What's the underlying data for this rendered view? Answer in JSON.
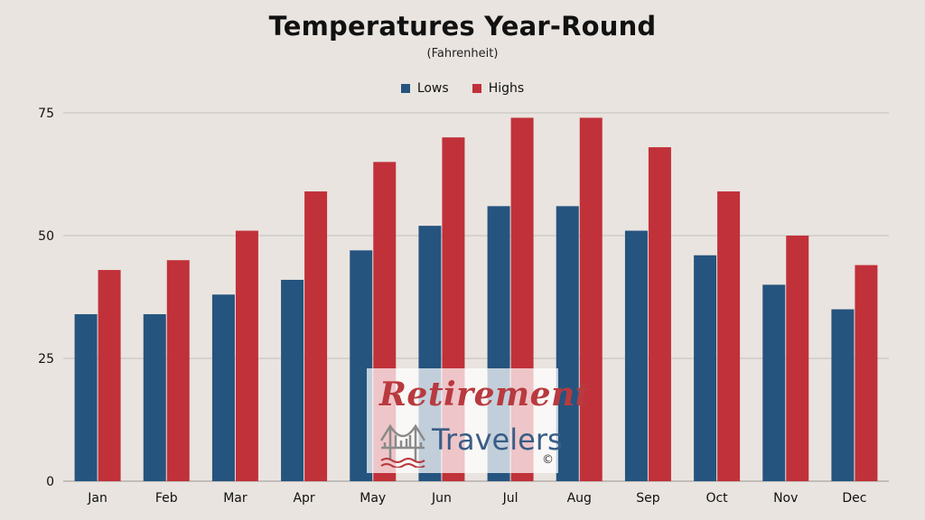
{
  "chart_data": {
    "type": "bar",
    "title": "Temperatures Year-Round",
    "subtitle": "(Fahrenheit)",
    "categories": [
      "Jan",
      "Feb",
      "Mar",
      "Apr",
      "May",
      "Jun",
      "Jul",
      "Aug",
      "Sep",
      "Oct",
      "Nov",
      "Dec"
    ],
    "series": [
      {
        "name": "Lows",
        "color": "#25547f",
        "values": [
          34,
          34,
          38,
          41,
          47,
          52,
          56,
          56,
          51,
          46,
          40,
          35
        ]
      },
      {
        "name": "Highs",
        "color": "#c1313a",
        "values": [
          43,
          45,
          51,
          59,
          65,
          70,
          74,
          74,
          68,
          59,
          50,
          44
        ]
      }
    ],
    "ylim": [
      0,
      75
    ],
    "yticks": [
      0,
      25,
      50,
      75
    ],
    "grid": true,
    "legend_position": "top-center"
  },
  "watermark": {
    "line1": "Retirement",
    "line2": "Travelers",
    "copyright": "©",
    "icon": "bridge-icon"
  }
}
